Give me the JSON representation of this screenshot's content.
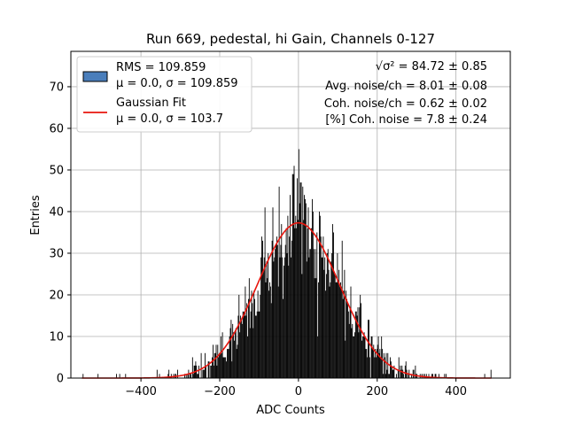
{
  "chart_data": {
    "type": "bar",
    "title": "Run 669, pedestal, hi Gain, Channels 0-127",
    "xlabel": "ADC Counts",
    "ylabel": "Entries",
    "xlim": [
      -578,
      538
    ],
    "ylim": [
      0,
      78.5
    ],
    "x_ticks": [
      -400,
      -200,
      0,
      200,
      400
    ],
    "x_tick_labels": [
      "−400",
      "−200",
      "0",
      "200",
      "400"
    ],
    "y_ticks": [
      0,
      10,
      20,
      30,
      40,
      50,
      60,
      70
    ],
    "y_tick_labels": [
      "0",
      "10",
      "20",
      "30",
      "40",
      "50",
      "60",
      "70"
    ],
    "grid": true,
    "legend_position": "top-left",
    "histogram": {
      "name_line1": "RMS = 109.859",
      "name_line2": "μ = 0.0, σ = 109.859",
      "color": "#4a7ebb",
      "bar_fill": "#000000",
      "bin_width": 2,
      "peak_entries": 55,
      "outliers": [
        [
          -548,
          1
        ],
        [
          -510,
          1
        ],
        [
          -463,
          1
        ],
        [
          -455,
          1
        ],
        [
          -440,
          1
        ],
        [
          472,
          1
        ],
        [
          488,
          2
        ]
      ]
    },
    "fit": {
      "name_line1": "Gaussian Fit",
      "name_line2": "μ = 0.0, σ = 103.7",
      "color": "#e8150d",
      "amplitude": 37.3,
      "mu": 0.0,
      "sigma": 103.7,
      "x_range": [
        -550,
        490
      ]
    },
    "annotations": [
      "√σ² = 84.72 ± 0.85",
      "Avg. noise/ch = 8.01 ± 0.08",
      "Coh. noise/ch = 0.62 ± 0.02",
      "[%] Coh. noise = 7.8 ± 0.24"
    ]
  }
}
